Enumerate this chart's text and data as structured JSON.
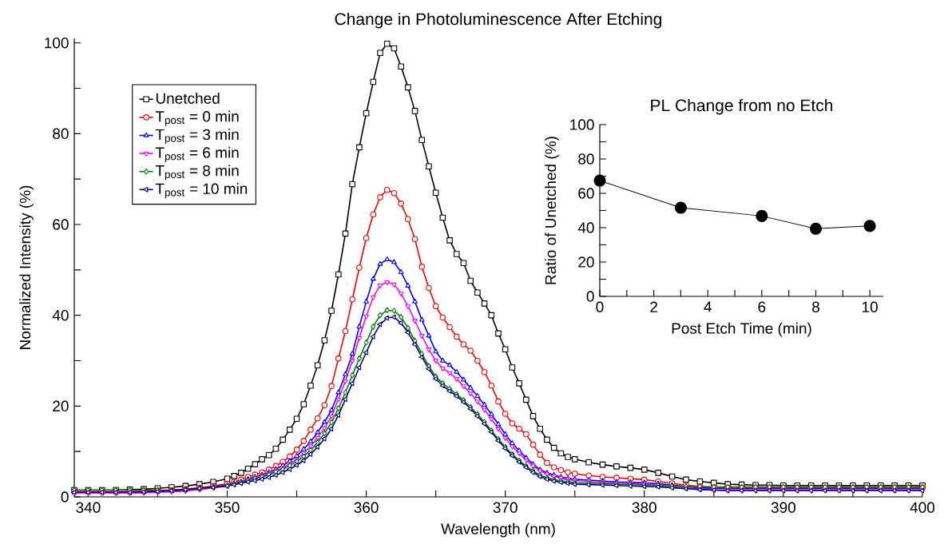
{
  "chart_data": [
    {
      "type": "line",
      "title": "Change in Photoluminescence After Etching",
      "xlabel": "Wavelength (nm)",
      "ylabel": "Normalized Intensity (%)",
      "x": [
        339,
        340,
        341,
        342,
        343,
        344,
        345,
        346,
        347,
        348,
        349,
        350,
        350.5,
        351,
        351.5,
        352,
        352.5,
        353,
        353.5,
        354,
        354.5,
        355,
        355.5,
        356,
        356.5,
        357,
        357.5,
        358,
        358.5,
        359,
        359.5,
        360,
        360.5,
        361,
        361.5,
        362,
        362.5,
        363,
        363.5,
        364,
        364.5,
        365,
        365.5,
        366,
        366.5,
        367,
        367.5,
        368,
        368.5,
        369,
        369.5,
        370,
        370.5,
        371,
        371.5,
        372,
        372.5,
        373,
        373.5,
        374,
        374.5,
        375,
        376,
        377,
        378,
        379,
        380,
        381,
        382,
        383,
        384,
        385,
        386,
        387,
        388,
        389,
        390,
        391,
        392,
        393,
        394,
        395,
        396,
        397,
        398,
        399,
        400
      ],
      "series": [
        {
          "name": "Unetched",
          "color": "#000000",
          "marker": "square",
          "values": [
            1.5,
            1.5,
            1.5,
            1.5,
            1.6,
            1.7,
            1.9,
            2.1,
            2.4,
            2.8,
            3.3,
            4.0,
            4.6,
            5.3,
            6.2,
            7.2,
            8.3,
            9.2,
            10.6,
            12.6,
            14.8,
            17.2,
            20.4,
            24.5,
            29,
            34.5,
            41,
            49,
            58,
            68.9,
            77,
            84.5,
            91.4,
            97.8,
            99.8,
            98.8,
            94.8,
            90.2,
            85,
            78.6,
            72.8,
            67,
            61.5,
            56.5,
            53.5,
            51.5,
            47.6,
            45,
            42.6,
            40,
            36,
            32.5,
            28.5,
            25,
            21.4,
            17.8,
            15,
            12.6,
            10.8,
            9.6,
            8.8,
            8.3,
            7.6,
            7.1,
            6.7,
            6.4,
            6.0,
            5.3,
            4.5,
            3.8,
            3.4,
            3.1,
            2.8,
            2.7,
            2.6,
            2.6,
            2.5,
            2.5,
            2.5,
            2.5,
            2.5,
            2.5,
            2.5,
            2.5,
            2.5,
            2.5,
            2.5
          ]
        },
        {
          "name": "T$_{post}$ = 0 min",
          "color": "#ff0000",
          "marker": "circle",
          "values": [
            1.2,
            1.2,
            1.2,
            1.2,
            1.2,
            1.3,
            1.4,
            1.5,
            1.7,
            2.0,
            2.4,
            2.9,
            3.3,
            3.8,
            4.4,
            4.9,
            5.4,
            6.0,
            6.8,
            7.7,
            8.9,
            10.4,
            12.3,
            14.8,
            17.3,
            20.2,
            24.4,
            30.5,
            36.5,
            43.5,
            50.5,
            57,
            62.2,
            66,
            67.6,
            66.9,
            64.6,
            61.2,
            56.8,
            50.7,
            46,
            42,
            39.5,
            37.4,
            35.3,
            33.6,
            32.2,
            30,
            27.5,
            24.5,
            21,
            18.3,
            16.2,
            15,
            13.8,
            11.5,
            9.3,
            7.5,
            6.5,
            5.9,
            5.4,
            5.1,
            4.7,
            4.4,
            4.2,
            4.0,
            3.8,
            3.4,
            3.0,
            2.6,
            2.3,
            2.1,
            2.0,
            2.0,
            2.0,
            2.0,
            2.0,
            2.0,
            2.0,
            2.0,
            2.0,
            2.0,
            2.0,
            2.0,
            2.0,
            2.0,
            2.0
          ]
        },
        {
          "name": "T$_{post}$ = 3 min",
          "color": "#0000ff",
          "marker": "triangle",
          "values": [
            1.0,
            1.0,
            1.0,
            1.0,
            1.0,
            1.1,
            1.2,
            1.3,
            1.5,
            1.8,
            2.2,
            2.6,
            3.0,
            3.4,
            3.9,
            4.4,
            4.9,
            5.4,
            6.1,
            6.9,
            7.9,
            9.0,
            10.5,
            12.2,
            14.2,
            16.5,
            19.1,
            23,
            27,
            31.5,
            37.5,
            43,
            48,
            51.3,
            52.3,
            51.7,
            49.5,
            46.5,
            43,
            39,
            35.5,
            32,
            30,
            29,
            27.5,
            25.8,
            24,
            22.2,
            20.3,
            18.2,
            16,
            13.8,
            11.8,
            10.2,
            8.6,
            7.2,
            6.0,
            5.3,
            4.8,
            4.4,
            4.1,
            3.9,
            3.7,
            3.5,
            3.3,
            3.2,
            3.1,
            2.9,
            2.6,
            2.3,
            2.0,
            1.9,
            1.8,
            1.8,
            1.8,
            1.8,
            1.8,
            1.8,
            1.8,
            1.8,
            1.8,
            1.8,
            1.8,
            1.8,
            1.8,
            1.8,
            1.8
          ]
        },
        {
          "name": "T$_{post}$ = 6 min",
          "color": "#ff00ff",
          "marker": "triangle-down",
          "values": [
            0.8,
            0.8,
            0.8,
            0.8,
            0.8,
            0.9,
            1.0,
            1.1,
            1.3,
            1.6,
            2.0,
            2.4,
            2.8,
            3.2,
            3.6,
            4.1,
            4.6,
            5.1,
            5.7,
            6.4,
            7.3,
            8.3,
            9.6,
            11.2,
            13,
            15.2,
            17.8,
            21.5,
            25.5,
            30,
            35,
            39.8,
            44,
            46.6,
            47.3,
            46.8,
            44.8,
            42,
            38.8,
            35.5,
            32.5,
            30,
            28.3,
            27.3,
            26,
            24.4,
            22.8,
            21,
            19.2,
            17.2,
            15,
            13,
            11.1,
            9.6,
            8.1,
            6.8,
            5.7,
            5.0,
            4.5,
            4.1,
            3.8,
            3.6,
            3.4,
            3.2,
            3.0,
            2.9,
            2.8,
            2.6,
            2.3,
            2.0,
            1.7,
            1.5,
            1.4,
            1.4,
            1.4,
            1.4,
            1.4,
            1.4,
            1.4,
            1.4,
            1.4,
            1.4,
            1.4,
            1.4,
            1.4,
            1.4,
            1.4
          ]
        },
        {
          "name": "T$_{post}$ = 8 min",
          "color": "#008000",
          "marker": "diamond",
          "values": [
            1.5,
            1.5,
            1.5,
            1.5,
            1.5,
            1.5,
            1.5,
            1.5,
            1.6,
            1.8,
            2.1,
            2.6,
            2.9,
            3.2,
            3.6,
            4.0,
            4.4,
            4.9,
            5.5,
            6.1,
            6.9,
            7.8,
            8.9,
            10.3,
            12,
            14,
            16.4,
            19.5,
            23,
            26.8,
            30.5,
            34,
            37.5,
            40,
            41.1,
            41,
            39.6,
            37.2,
            34.4,
            31.5,
            28.8,
            26.5,
            25,
            23.8,
            22.6,
            21.3,
            19.8,
            18.2,
            16.5,
            14.6,
            12.7,
            11,
            9.4,
            8,
            6.8,
            5.7,
            4.8,
            4.2,
            3.8,
            3.5,
            3.3,
            3.1,
            3.0,
            2.9,
            2.8,
            2.7,
            2.6,
            2.5,
            2.4,
            2.3,
            2.3,
            2.2,
            2.2,
            2.2,
            2.2,
            2.2,
            2.2,
            2.2,
            2.2,
            2.2,
            2.2,
            2.2,
            2.2,
            2.2,
            2.2,
            2.2,
            2.2
          ]
        },
        {
          "name": "T$_{post}$ = 10 min",
          "color": "#000080",
          "marker": "triangle-left",
          "values": [
            1.0,
            1.0,
            1.0,
            1.0,
            1.0,
            1.1,
            1.2,
            1.4,
            1.6,
            1.9,
            2.1,
            2.4,
            2.7,
            3.0,
            3.3,
            3.6,
            3.9,
            4.3,
            4.8,
            5.4,
            6.1,
            7.0,
            8.0,
            9.4,
            11,
            12.8,
            15,
            18,
            21.5,
            25,
            28.5,
            31.8,
            35.3,
            38,
            39.4,
            39.6,
            38.3,
            36.2,
            33.6,
            30.8,
            28.2,
            26,
            24.5,
            23.3,
            22.2,
            20.9,
            19.4,
            17.8,
            16.1,
            14.3,
            12.4,
            10.7,
            9.1,
            7.7,
            6.5,
            5.4,
            4.5,
            3.9,
            3.5,
            3.2,
            3.0,
            2.8,
            2.7,
            2.6,
            2.5,
            2.4,
            2.3,
            2.2,
            2.0,
            1.8,
            1.6,
            1.5,
            1.4,
            1.4,
            1.4,
            1.4,
            1.4,
            1.4,
            1.4,
            1.4,
            1.4,
            1.4,
            1.4,
            1.4,
            1.4,
            1.4,
            1.4
          ]
        }
      ],
      "legend": "top left",
      "xlim": [
        339,
        400
      ],
      "ylim": [
        0,
        101
      ],
      "xticks": [
        340,
        {
          "value": 345,
          "label": null
        },
        350,
        {
          "value": 355,
          "label": null
        },
        360,
        {
          "value": 365,
          "label": null
        },
        370,
        {
          "value": 375,
          "label": null
        },
        380,
        {
          "value": 385,
          "label": null
        },
        390,
        {
          "value": 395,
          "label": null
        },
        400
      ],
      "yticks": [
        0,
        {
          "value": 10,
          "label": null
        },
        20,
        {
          "value": 30,
          "label": null
        },
        40,
        {
          "value": 50,
          "label": null
        },
        60,
        {
          "value": 70,
          "label": null
        },
        80,
        {
          "value": 90,
          "label": null
        },
        100
      ]
    },
    {
      "type": "line",
      "title": "PL Change from no Etch",
      "xlabel": "Post Etch Time (min)",
      "ylabel": "Ratio of Unetched (%)",
      "x": [
        0,
        3,
        6,
        8,
        10
      ],
      "values": [
        67.4,
        51.6,
        46.8,
        39.4,
        41.0
      ],
      "color": "#000000",
      "marker": "circle",
      "xlim": [
        0,
        10.5
      ],
      "ylim": [
        0,
        100
      ],
      "xticks": [
        0,
        {
          "value": 1,
          "label": null
        },
        2,
        {
          "value": 3,
          "label": null
        },
        4,
        {
          "value": 5,
          "label": null
        },
        6,
        {
          "value": 7,
          "label": null
        },
        8,
        {
          "value": 9,
          "label": null
        },
        10
      ],
      "yticks": [
        0,
        {
          "value": 10,
          "label": null
        },
        20,
        {
          "value": 30,
          "label": null
        },
        40,
        {
          "value": 50,
          "label": null
        },
        60,
        {
          "value": 70,
          "label": null
        },
        80,
        {
          "value": 90,
          "label": null
        },
        100
      ]
    }
  ]
}
